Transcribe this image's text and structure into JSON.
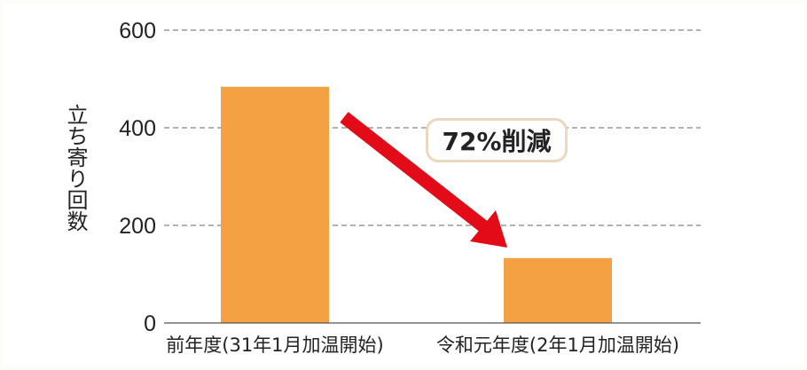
{
  "chart_data": {
    "type": "bar",
    "categories": [
      "前年度(31年1月加温開始)",
      "令和元年度(2年1月加温開始)"
    ],
    "values": [
      484,
      133
    ],
    "title": "",
    "xlabel": "",
    "ylabel": "立ち寄り回数",
    "ylim": [
      0,
      600
    ],
    "yticks": [
      0,
      200,
      400,
      600
    ],
    "grid": true,
    "annotation": "72%削減",
    "colors": {
      "bar": "#f3a142",
      "arrow": "#e30b17",
      "grid": "#666666",
      "callout_border": "#ecd9bd"
    }
  }
}
